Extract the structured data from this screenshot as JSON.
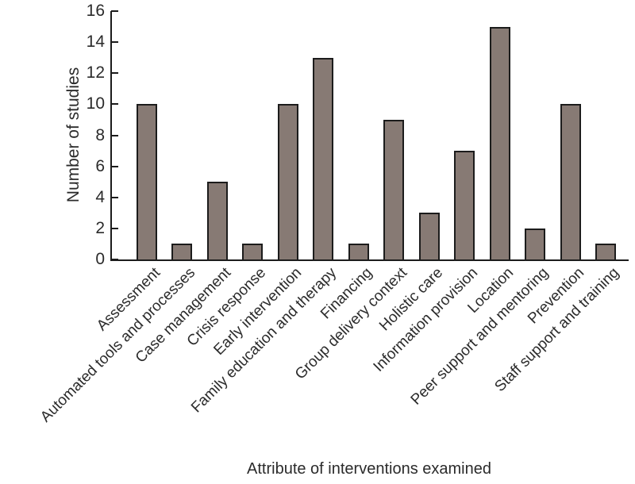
{
  "chart_data": {
    "type": "bar",
    "title": "",
    "categories": [
      "Assessment",
      "Automated tools and processes",
      "Case management",
      "Crisis response",
      "Early intervention",
      "Family education and therapy",
      "Financing",
      "Group delivery context",
      "Holistic care",
      "Information provision",
      "Location",
      "Peer support and mentoring",
      "Prevention",
      "Staff support and training"
    ],
    "values": [
      10,
      1,
      5,
      1,
      10,
      13,
      1,
      9,
      3,
      7,
      15,
      2,
      10,
      1
    ],
    "xlabel": "Attribute of interventions examined",
    "ylabel": "Number of studies",
    "ylim": [
      0,
      16
    ],
    "ytick_step": 2,
    "ytick_labels": [
      "0",
      "2",
      "4",
      "6",
      "8",
      "10",
      "12",
      "14",
      "16"
    ],
    "grid": false,
    "legend": "none",
    "bar_color": "#877a74",
    "bar_border_color": "#1c1c1c",
    "axis_color": "#1c1c1c",
    "text_color": "#2b2b2b"
  }
}
